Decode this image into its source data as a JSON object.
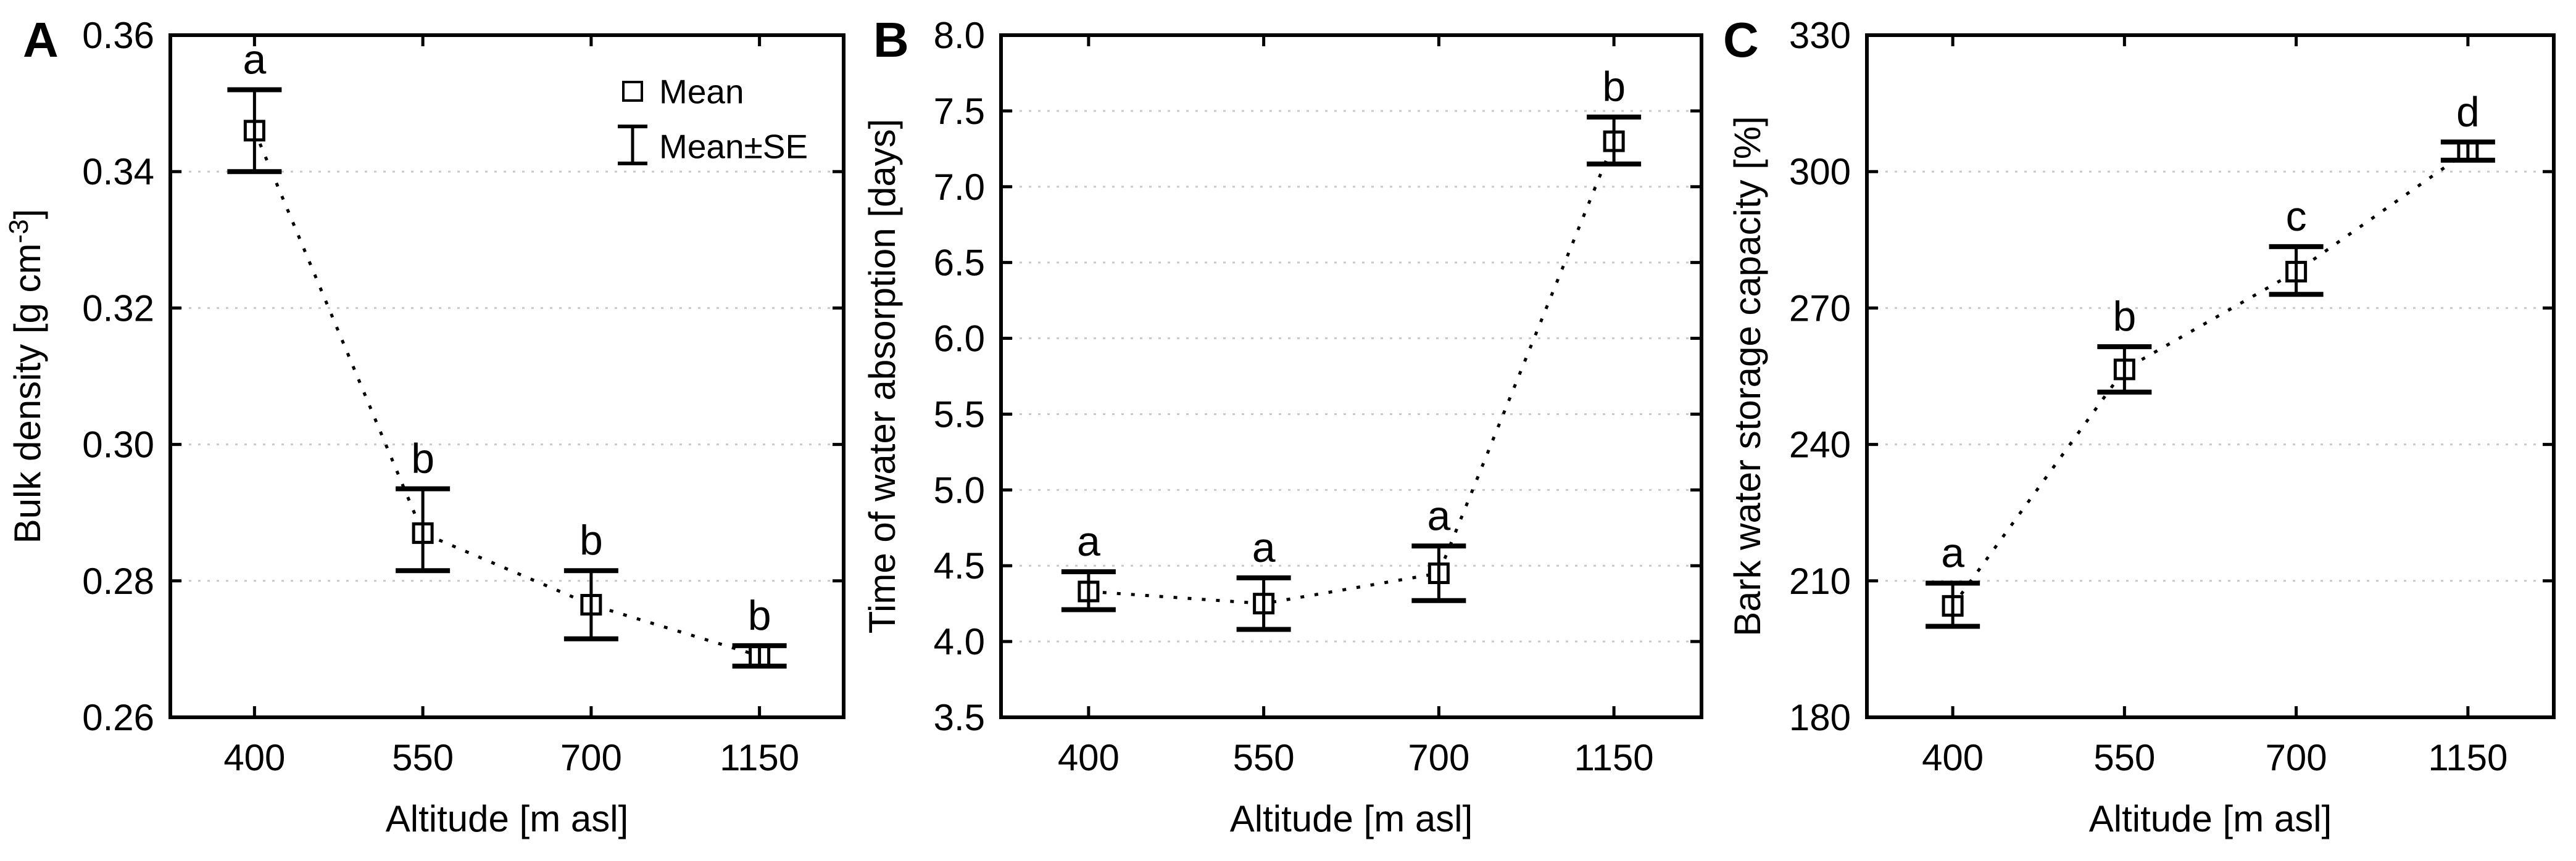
{
  "colors": {
    "axis": "#000000",
    "grid": "#c9c9c9",
    "marker_fill": "#ffffff",
    "background": "#ffffff"
  },
  "legend": {
    "mean_label": "Mean",
    "se_label": "Mean±SE"
  },
  "chart_data": [
    {
      "type": "scatter",
      "panel_letter": "A",
      "xlabel": "Altitude [m asl]",
      "ylabel": "Bulk density [g cm⁻³]",
      "categories": [
        "400",
        "550",
        "700",
        "1150"
      ],
      "ylim": [
        0.26,
        0.36
      ],
      "ytick_values": [
        0.26,
        0.28,
        0.3,
        0.32,
        0.34,
        0.36
      ],
      "ytick_labels": [
        "0.26",
        "0.28",
        "0.30",
        "0.32",
        "0.34",
        "0.36"
      ],
      "series": [
        {
          "name": "Mean",
          "means": [
            0.346,
            0.287,
            0.2765,
            0.269
          ],
          "se_upper": [
            0.352,
            0.2935,
            0.2815,
            0.2705
          ],
          "se_lower": [
            0.34,
            0.2815,
            0.2715,
            0.2675
          ]
        }
      ],
      "sig_letters": [
        "a",
        "b",
        "b",
        "b"
      ],
      "grid": "horizontal-dotted",
      "legend_position": "top-right-inside",
      "has_legend": true
    },
    {
      "type": "scatter",
      "panel_letter": "B",
      "xlabel": "Altitude [m asl]",
      "ylabel": "Time of water absorption [days]",
      "categories": [
        "400",
        "550",
        "700",
        "1150"
      ],
      "ylim": [
        3.5,
        8.0
      ],
      "ytick_values": [
        3.5,
        4.0,
        4.5,
        5.0,
        5.5,
        6.0,
        6.5,
        7.0,
        7.5,
        8.0
      ],
      "ytick_labels": [
        "3.5",
        "4.0",
        "4.5",
        "5.0",
        "5.5",
        "6.0",
        "6.5",
        "7.0",
        "7.5",
        "8.0"
      ],
      "series": [
        {
          "name": "Mean",
          "means": [
            4.33,
            4.25,
            4.45,
            7.3
          ],
          "se_upper": [
            4.46,
            4.42,
            4.63,
            7.46
          ],
          "se_lower": [
            4.21,
            4.08,
            4.27,
            7.15
          ]
        }
      ],
      "sig_letters": [
        "a",
        "a",
        "a",
        "b"
      ],
      "grid": "horizontal-dotted",
      "has_legend": false
    },
    {
      "type": "scatter",
      "panel_letter": "C",
      "xlabel": "Altitude [m asl]",
      "ylabel": "Bark water storage capacity [%]",
      "categories": [
        "400",
        "550",
        "700",
        "1150"
      ],
      "ylim": [
        180,
        330
      ],
      "ytick_values": [
        180,
        210,
        240,
        270,
        300,
        330
      ],
      "ytick_labels": [
        "180",
        "210",
        "240",
        "270",
        "300",
        "330"
      ],
      "series": [
        {
          "name": "Mean",
          "means": [
            204.5,
            256.5,
            278,
            304.5
          ],
          "se_upper": [
            209.5,
            261.5,
            283.5,
            306.5
          ],
          "se_lower": [
            200,
            251.5,
            273,
            302.5
          ]
        }
      ],
      "sig_letters": [
        "a",
        "b",
        "c",
        "d"
      ],
      "grid": "horizontal-dotted",
      "has_legend": false
    }
  ]
}
